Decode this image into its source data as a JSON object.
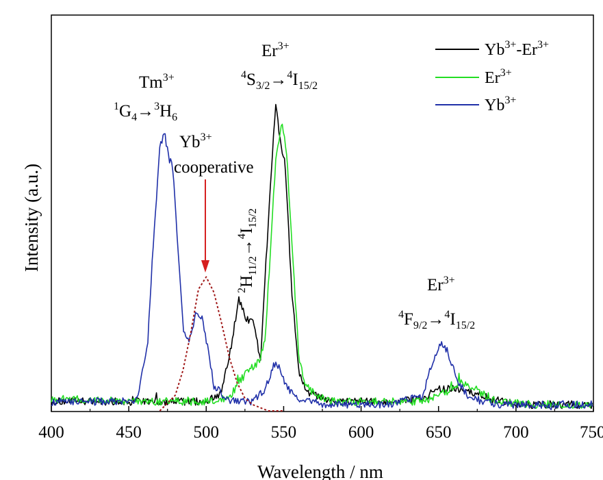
{
  "chart_data": {
    "type": "line",
    "xlabel": "Wavelength / nm",
    "ylabel": "Intensity (a.u.)",
    "xlim": [
      400,
      750
    ],
    "ylim": [
      0,
      1.0
    ],
    "x_ticks": [
      "400",
      "450",
      "500",
      "550",
      "600",
      "650",
      "700",
      "750"
    ],
    "legend_position": "top-right",
    "legend": [
      {
        "label": "Yb",
        "sup": "3+",
        "label2": "-Er",
        "sup2": "3+"
      },
      {
        "label": "Er",
        "sup": "3+",
        "label2": "",
        "sup2": ""
      },
      {
        "label": "Yb",
        "sup": "3+",
        "label2": "",
        "sup2": ""
      }
    ],
    "series": [
      {
        "name": "Yb3+-Er3+",
        "color": "#000000",
        "x": [
          400,
          450,
          500,
          510,
          516,
          521,
          526,
          530,
          535,
          540,
          545,
          548,
          551,
          555,
          560,
          565,
          580,
          600,
          620,
          640,
          650,
          660,
          670,
          690,
          710,
          750
        ],
        "y": [
          0.03,
          0.03,
          0.03,
          0.06,
          0.2,
          0.36,
          0.29,
          0.3,
          0.16,
          0.6,
          1.0,
          0.85,
          0.79,
          0.4,
          0.12,
          0.06,
          0.03,
          0.03,
          0.03,
          0.04,
          0.07,
          0.07,
          0.06,
          0.03,
          0.02,
          0.02
        ]
      },
      {
        "name": "Er3+",
        "color": "#22dd22",
        "x": [
          400,
          450,
          500,
          515,
          522,
          528,
          534,
          538,
          541,
          545,
          549,
          552,
          556,
          560,
          565,
          580,
          600,
          620,
          640,
          655,
          665,
          675,
          690,
          710,
          750
        ],
        "y": [
          0.04,
          0.03,
          0.03,
          0.04,
          0.1,
          0.13,
          0.16,
          0.22,
          0.48,
          0.82,
          0.92,
          0.82,
          0.48,
          0.16,
          0.07,
          0.03,
          0.03,
          0.03,
          0.03,
          0.06,
          0.09,
          0.06,
          0.03,
          0.02,
          0.02
        ]
      },
      {
        "name": "Yb3+",
        "color": "#1f2fa8",
        "x": [
          400,
          455,
          462,
          466,
          470,
          473,
          476,
          478,
          481,
          485,
          489,
          493,
          497,
          501,
          505,
          515,
          530,
          538,
          544,
          547,
          551,
          556,
          565,
          580,
          620,
          640,
          645,
          650,
          654,
          658,
          662,
          670,
          690,
          710,
          750
        ],
        "y": [
          0.03,
          0.03,
          0.2,
          0.55,
          0.84,
          0.9,
          0.8,
          0.81,
          0.57,
          0.27,
          0.22,
          0.31,
          0.3,
          0.2,
          0.08,
          0.03,
          0.03,
          0.07,
          0.15,
          0.14,
          0.09,
          0.05,
          0.03,
          0.02,
          0.02,
          0.05,
          0.14,
          0.21,
          0.21,
          0.16,
          0.1,
          0.04,
          0.02,
          0.02,
          0.02
        ]
      },
      {
        "name": "Yb3+ cooperative",
        "color": "#a01818",
        "dashed": true,
        "x": [
          470,
          480,
          485,
          490,
          495,
          500,
          505,
          510,
          515,
          520,
          525,
          530,
          540,
          550
        ],
        "y": [
          0.0,
          0.05,
          0.13,
          0.25,
          0.39,
          0.43,
          0.38,
          0.28,
          0.17,
          0.09,
          0.04,
          0.02,
          0.0,
          0.0
        ]
      }
    ],
    "annotations": {
      "tm": {
        "label": "Tm",
        "sup": "3+",
        "t1sup": "1",
        "t1": "G",
        "t1sub": "4",
        "arrow": "→",
        "t2sup": "3",
        "t2": "H",
        "t2sub": "6"
      },
      "yb_coop": {
        "label": "Yb",
        "sup": "3+",
        "word": "cooperative"
      },
      "er_green": {
        "label": "Er",
        "sup": "3+",
        "t1sup": "4",
        "t1": "S",
        "t1sub": "3/2",
        "arrow": "→",
        "t2sup": "4",
        "t2": "I",
        "t2sub": "15/2"
      },
      "h11": {
        "t1sup": "2",
        "t1": "H",
        "t1sub": "11/2",
        "arrow": "→",
        "t2sup": "4",
        "t2": "I",
        "t2sub": "15/2"
      },
      "er_red": {
        "label": "Er",
        "sup": "3+",
        "t1sup": "4",
        "t1": "F",
        "t1sub": "9/2",
        "arrow": "→",
        "t2sup": "4",
        "t2": "I",
        "t2sub": "15/2"
      }
    }
  }
}
